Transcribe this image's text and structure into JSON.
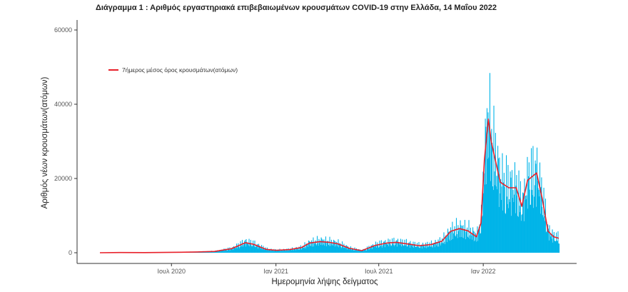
{
  "chart_data": {
    "type": "bar",
    "title": "Διάγραμμα 1 : Αριθμός εργαστηριακά επιβεβαιωμένων κρουσμάτων COVID-19 στην Ελλάδα, 14 Μαΐου 2022",
    "xlabel": "Ημερομηνία λήψης δείγματος",
    "ylabel": "Αριθμός νέων κρουσμάτων(ατόμων)",
    "ylim": [
      0,
      62000
    ],
    "xlim": [
      "2020-02-26",
      "2022-05-14"
    ],
    "y_ticks": [
      0,
      20000,
      40000,
      60000
    ],
    "y_tick_labels": [
      "0",
      "20000",
      "40000",
      "60000"
    ],
    "x_ticks": [
      "2020-07-01",
      "2021-01-01",
      "2021-07-01",
      "2022-01-01"
    ],
    "x_tick_labels": [
      "Ιουλ 2020",
      "Ιαν 2021",
      "Ιουλ 2021",
      "Ιαν 2022"
    ],
    "grid": false,
    "legend": {
      "position": "top-left",
      "entries": [
        "7ήμερος μέσος όρος κρουσμάτων(ατόμων)"
      ]
    },
    "series": [
      {
        "name": "daily",
        "kind": "bar",
        "color": "#00b4e8",
        "x": [
          "2020-02-26",
          "2020-04-01",
          "2020-05-15",
          "2020-07-01",
          "2020-08-15",
          "2020-09-15",
          "2020-10-15",
          "2020-11-08",
          "2020-11-22",
          "2020-12-15",
          "2021-01-01",
          "2021-01-25",
          "2021-02-15",
          "2021-03-01",
          "2021-03-20",
          "2021-04-05",
          "2021-04-20",
          "2021-05-10",
          "2021-06-01",
          "2021-06-25",
          "2021-07-15",
          "2021-08-01",
          "2021-08-20",
          "2021-09-10",
          "2021-10-01",
          "2021-10-20",
          "2021-11-05",
          "2021-11-20",
          "2021-12-05",
          "2021-12-20",
          "2021-12-28",
          "2022-01-03",
          "2022-01-10",
          "2022-01-15",
          "2022-01-20",
          "2022-01-31",
          "2022-02-15",
          "2022-02-28",
          "2022-03-10",
          "2022-03-20",
          "2022-03-28",
          "2022-04-05",
          "2022-04-15",
          "2022-04-25",
          "2022-05-05",
          "2022-05-14"
        ],
        "values": [
          0,
          100,
          50,
          150,
          250,
          400,
          1200,
          3000,
          2500,
          1000,
          700,
          900,
          1500,
          2800,
          3300,
          3000,
          2600,
          1300,
          600,
          2200,
          2800,
          3000,
          2600,
          2000,
          2300,
          3300,
          6000,
          6800,
          6200,
          4600,
          9000,
          27000,
          38000,
          31000,
          27000,
          20000,
          18000,
          18000,
          13000,
          20000,
          21000,
          22000,
          15000,
          6000,
          4400,
          4000
        ]
      },
      {
        "name": "7ήμερος μέσος όρος κρουσμάτων(ατόμων)",
        "kind": "line",
        "color": "#e8202a",
        "x": [
          "2020-02-26",
          "2020-04-01",
          "2020-05-15",
          "2020-07-01",
          "2020-08-15",
          "2020-09-15",
          "2020-10-15",
          "2020-11-08",
          "2020-11-22",
          "2020-12-15",
          "2021-01-01",
          "2021-01-25",
          "2021-02-15",
          "2021-03-01",
          "2021-03-20",
          "2021-04-05",
          "2021-04-20",
          "2021-05-10",
          "2021-06-01",
          "2021-06-25",
          "2021-07-15",
          "2021-08-01",
          "2021-08-20",
          "2021-09-10",
          "2021-10-01",
          "2021-10-20",
          "2021-11-05",
          "2021-11-20",
          "2021-12-05",
          "2021-12-20",
          "2021-12-28",
          "2022-01-03",
          "2022-01-10",
          "2022-01-15",
          "2022-01-20",
          "2022-01-31",
          "2022-02-15",
          "2022-02-28",
          "2022-03-10",
          "2022-03-20",
          "2022-03-28",
          "2022-04-05",
          "2022-04-15",
          "2022-04-25",
          "2022-05-05",
          "2022-05-14"
        ],
        "values": [
          0,
          60,
          30,
          100,
          200,
          350,
          1100,
          2700,
          2300,
          900,
          650,
          850,
          1400,
          2600,
          3000,
          2800,
          2400,
          1200,
          550,
          2000,
          2600,
          2800,
          2400,
          1900,
          2200,
          3100,
          5800,
          6500,
          5900,
          4300,
          8000,
          25000,
          36000,
          30000,
          26500,
          19000,
          17500,
          17500,
          12500,
          19500,
          20500,
          21500,
          14500,
          5800,
          4300,
          3900
        ]
      }
    ]
  }
}
